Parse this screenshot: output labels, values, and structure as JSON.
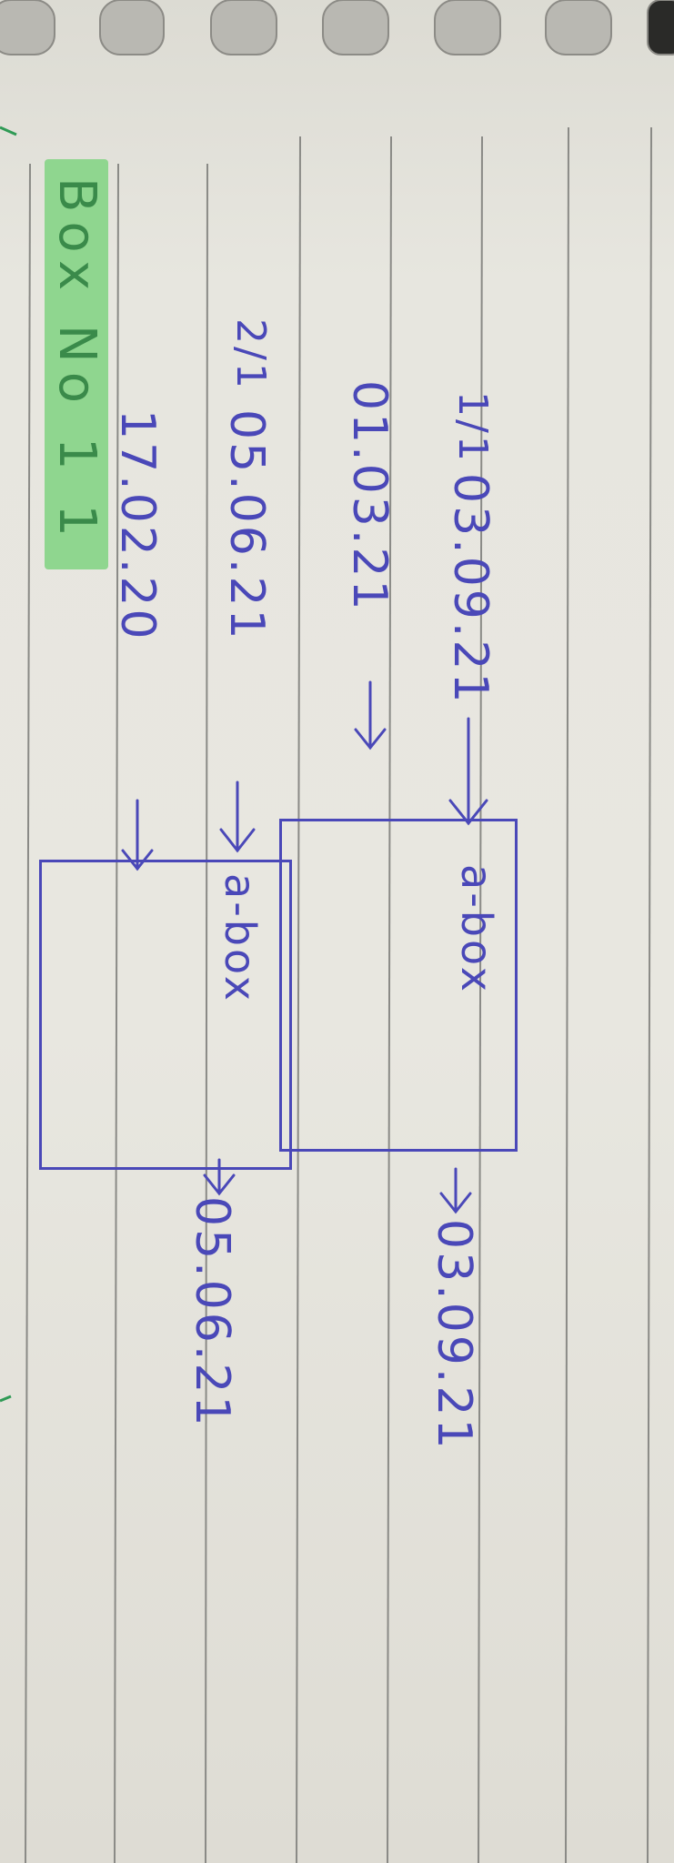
{
  "title": "Box No 1 1",
  "entry1": {
    "marker": "1/1",
    "date_top": "03.09.21",
    "date_bottom": "01.03.21",
    "box_label": "a-box",
    "output_date": "03.09.21"
  },
  "entry2": {
    "marker": "2/1",
    "date_top": "05.06.21",
    "date_bottom": "17.02.20",
    "box_label": "a-box",
    "output_date": "05.06.21"
  },
  "colors": {
    "ink": "#4a48b8",
    "highlighter": "#8fd68f",
    "highlighter_ink": "#3a8a4a",
    "paper": "#e8e7e0",
    "rule": "#8a8a86"
  }
}
